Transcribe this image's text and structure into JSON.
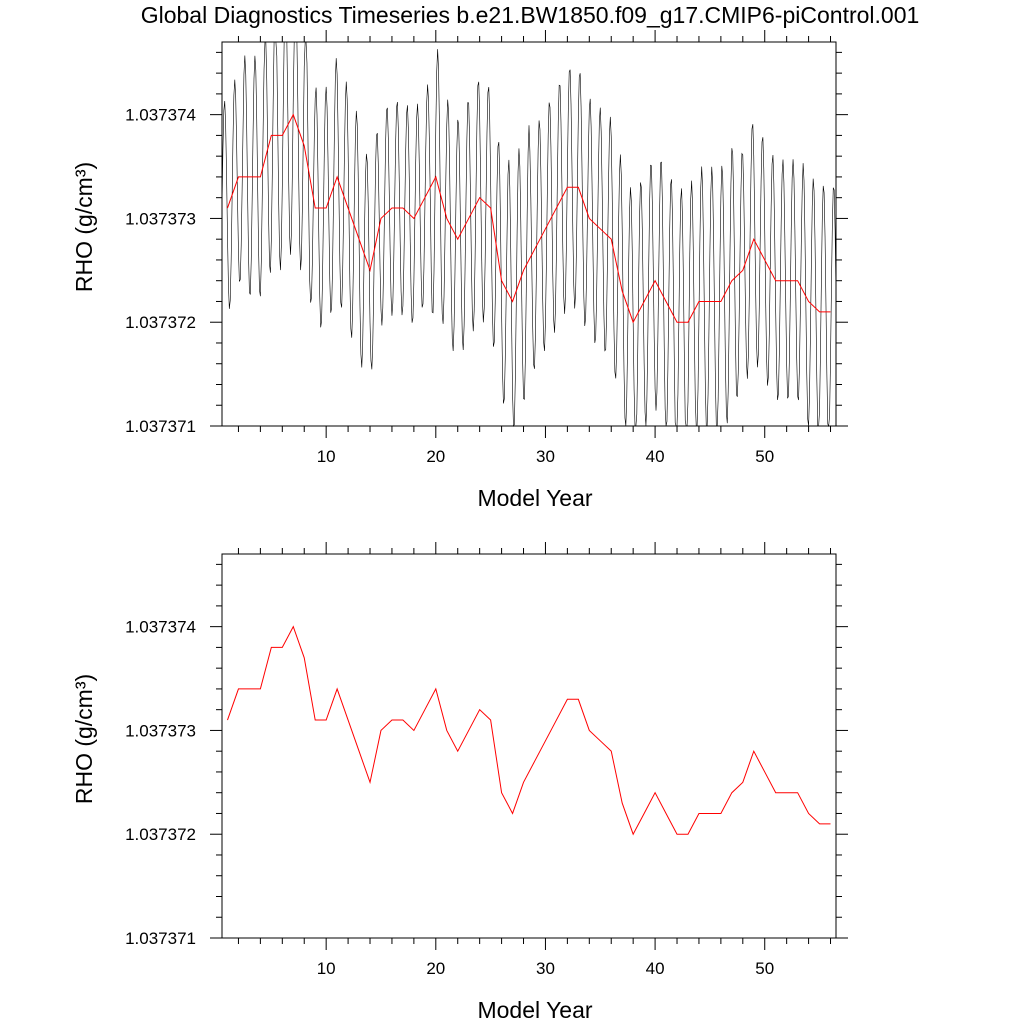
{
  "title": "Global Diagnostics Timeseries b.e21.BW1850.f09_g17.CMIP6-piControl.001",
  "colors": {
    "monthly": "#000000",
    "annual": "#ff0000",
    "axes": "#000000"
  },
  "chart_data": [
    {
      "type": "line",
      "name": "top-panel",
      "xlabel": "Model Year",
      "ylabel": "RHO (g/cm³)",
      "xlim": [
        0.5,
        56.5
      ],
      "ylim": [
        1.037371,
        1.0373747
      ],
      "xticks": [
        10,
        20,
        30,
        40,
        50
      ],
      "yticks": [
        1.037371,
        1.037372,
        1.037373,
        1.037374
      ],
      "ytick_labels": [
        "1.037371",
        "1.037372",
        "1.037373",
        "1.037374"
      ],
      "grid": false,
      "legend": "none",
      "series": [
        {
          "style": "black thin line, monthly values (12 per year), seasonal oscillation around the annual mean",
          "monthly_mean_reference": "annual",
          "amplitude_by_year": [
            0.8,
            0.8,
            0.9,
            0.9,
            1.0,
            1.0,
            1.0,
            1.0,
            0.9,
            0.9,
            0.9,
            0.9,
            0.9,
            0.8,
            0.8,
            0.8,
            0.8,
            0.8,
            0.8,
            1.0,
            0.9,
            0.9,
            0.9,
            0.9,
            0.9,
            0.9,
            1.0,
            1.0,
            0.9,
            0.9,
            0.9,
            0.9,
            0.9,
            0.9,
            0.9,
            0.9,
            0.95,
            0.95,
            0.95,
            0.95,
            1.0,
            1.0,
            1.0,
            1.0,
            1.0,
            1.0,
            1.0,
            0.9,
            0.9,
            0.9,
            0.9,
            0.9,
            0.9,
            0.95,
            0.95,
            0.95
          ]
        },
        {
          "style": "red line, annual mean",
          "x": [
            1,
            2,
            3,
            4,
            5,
            6,
            7,
            8,
            9,
            10,
            11,
            12,
            13,
            14,
            15,
            16,
            17,
            18,
            19,
            20,
            21,
            22,
            23,
            24,
            25,
            26,
            27,
            28,
            29,
            30,
            31,
            32,
            33,
            34,
            35,
            36,
            37,
            38,
            39,
            40,
            41,
            42,
            43,
            44,
            45,
            46,
            47,
            48,
            49,
            50,
            51,
            52,
            53,
            54,
            55,
            56
          ],
          "values": [
            1.0373731,
            1.0373734,
            1.0373734,
            1.0373734,
            1.0373738,
            1.0373738,
            1.037374,
            1.0373737,
            1.0373731,
            1.0373731,
            1.0373734,
            1.0373731,
            1.0373728,
            1.0373725,
            1.037373,
            1.0373731,
            1.0373731,
            1.037373,
            1.0373732,
            1.0373734,
            1.037373,
            1.0373728,
            1.037373,
            1.0373732,
            1.0373731,
            1.0373724,
            1.0373722,
            1.0373725,
            1.0373727,
            1.0373729,
            1.0373731,
            1.0373733,
            1.0373733,
            1.037373,
            1.0373729,
            1.0373728,
            1.0373723,
            1.037372,
            1.0373722,
            1.0373724,
            1.0373722,
            1.037372,
            1.037372,
            1.0373722,
            1.0373722,
            1.0373722,
            1.0373724,
            1.0373725,
            1.0373728,
            1.0373726,
            1.0373724,
            1.0373724,
            1.0373724,
            1.0373722,
            1.0373721,
            1.0373721
          ]
        }
      ]
    },
    {
      "type": "line",
      "name": "bottom-panel",
      "xlabel": "Model Year",
      "ylabel": "RHO (g/cm³)",
      "xlim": [
        0.5,
        56.5
      ],
      "ylim": [
        1.037371,
        1.0373747
      ],
      "xticks": [
        10,
        20,
        30,
        40,
        50
      ],
      "yticks": [
        1.037371,
        1.037372,
        1.037373,
        1.037374
      ],
      "ytick_labels": [
        "1.037371",
        "1.037372",
        "1.037373",
        "1.037374"
      ],
      "grid": false,
      "legend": "none",
      "series": [
        {
          "style": "red line, annual mean",
          "x": [
            1,
            2,
            3,
            4,
            5,
            6,
            7,
            8,
            9,
            10,
            11,
            12,
            13,
            14,
            15,
            16,
            17,
            18,
            19,
            20,
            21,
            22,
            23,
            24,
            25,
            26,
            27,
            28,
            29,
            30,
            31,
            32,
            33,
            34,
            35,
            36,
            37,
            38,
            39,
            40,
            41,
            42,
            43,
            44,
            45,
            46,
            47,
            48,
            49,
            50,
            51,
            52,
            53,
            54,
            55,
            56
          ],
          "values": [
            1.0373731,
            1.0373734,
            1.0373734,
            1.0373734,
            1.0373738,
            1.0373738,
            1.037374,
            1.0373737,
            1.0373731,
            1.0373731,
            1.0373734,
            1.0373731,
            1.0373728,
            1.0373725,
            1.037373,
            1.0373731,
            1.0373731,
            1.037373,
            1.0373732,
            1.0373734,
            1.037373,
            1.0373728,
            1.037373,
            1.0373732,
            1.0373731,
            1.0373724,
            1.0373722,
            1.0373725,
            1.0373727,
            1.0373729,
            1.0373731,
            1.0373733,
            1.0373733,
            1.037373,
            1.0373729,
            1.0373728,
            1.0373723,
            1.037372,
            1.0373722,
            1.0373724,
            1.0373722,
            1.037372,
            1.037372,
            1.0373722,
            1.0373722,
            1.0373722,
            1.0373724,
            1.0373725,
            1.0373728,
            1.0373726,
            1.0373724,
            1.0373724,
            1.0373724,
            1.0373722,
            1.0373721,
            1.0373721
          ]
        }
      ]
    }
  ]
}
